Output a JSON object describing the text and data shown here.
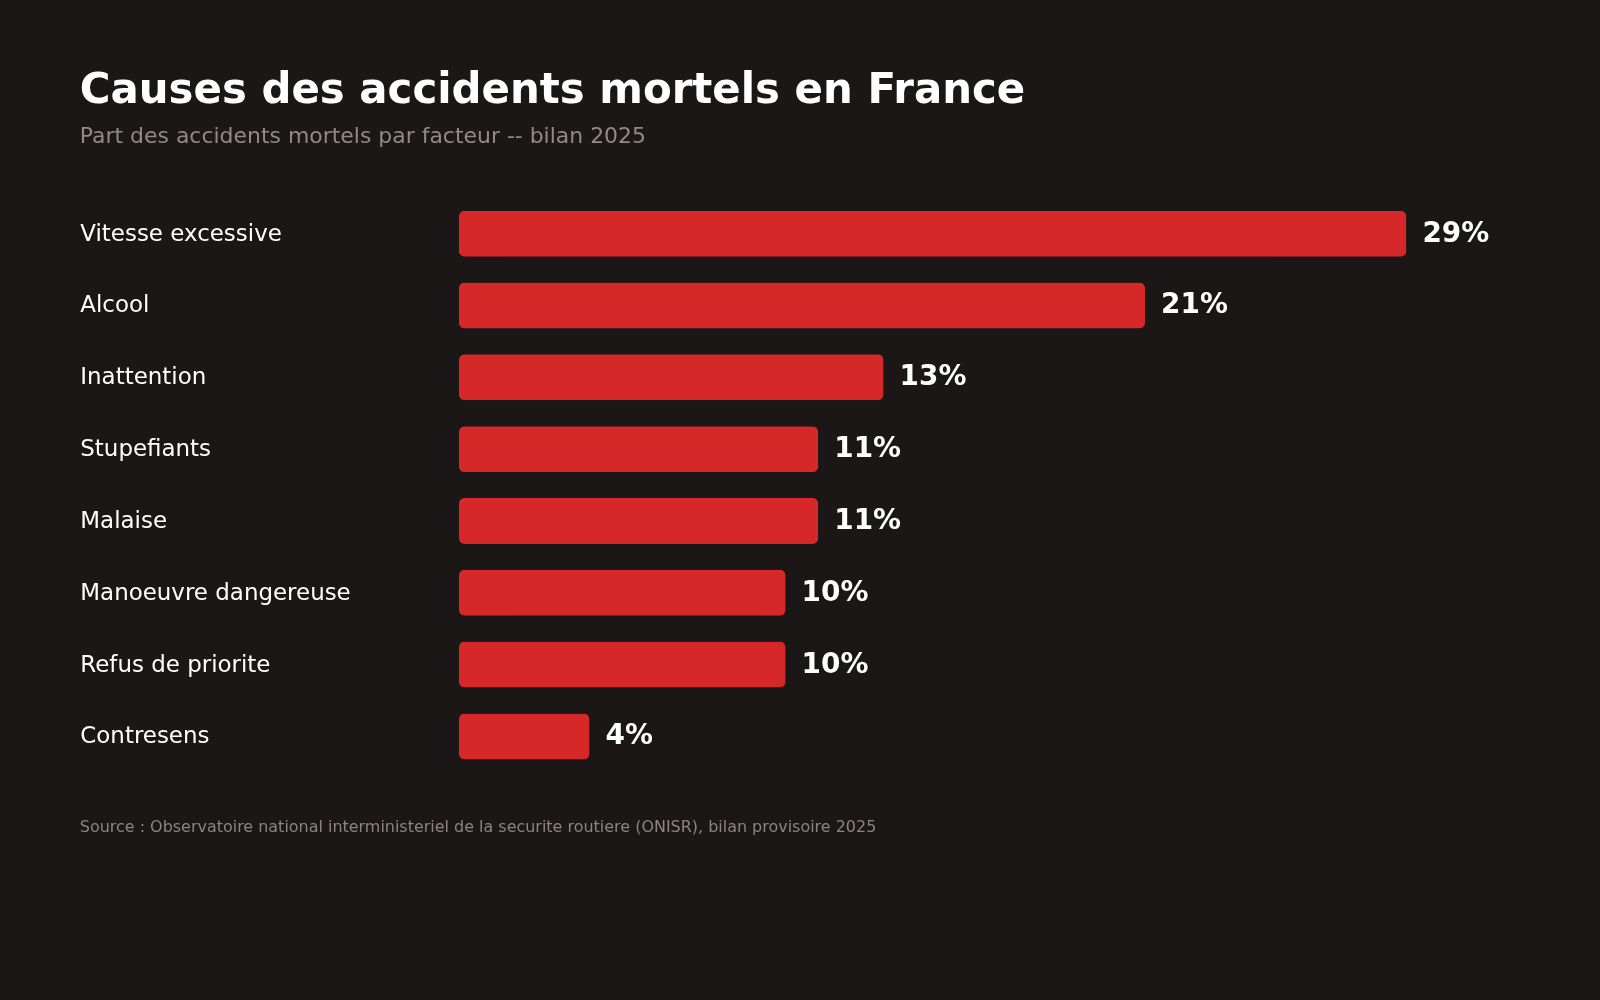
{
  "chart_data": {
    "type": "bar",
    "orientation": "horizontal",
    "title": "Causes des accidents mortels en France",
    "subtitle": "Part des accidents mortels par facteur -- bilan 2025",
    "categories": [
      "Vitesse excessive",
      "Alcool",
      "Inattention",
      "Stupefiants",
      "Malaise",
      "Manoeuvre dangereuse",
      "Refus de priorite",
      "Contresens"
    ],
    "values": [
      29,
      21,
      13,
      11,
      11,
      10,
      10,
      4
    ],
    "value_labels": [
      "29%",
      "21%",
      "13%",
      "11%",
      "11%",
      "10%",
      "10%",
      "4%"
    ],
    "color": "#d62828",
    "annotations": [
      "Source : Observatoire national interministeriel de la securite routiere (ONISR), bilan provisoire 2025"
    ]
  }
}
